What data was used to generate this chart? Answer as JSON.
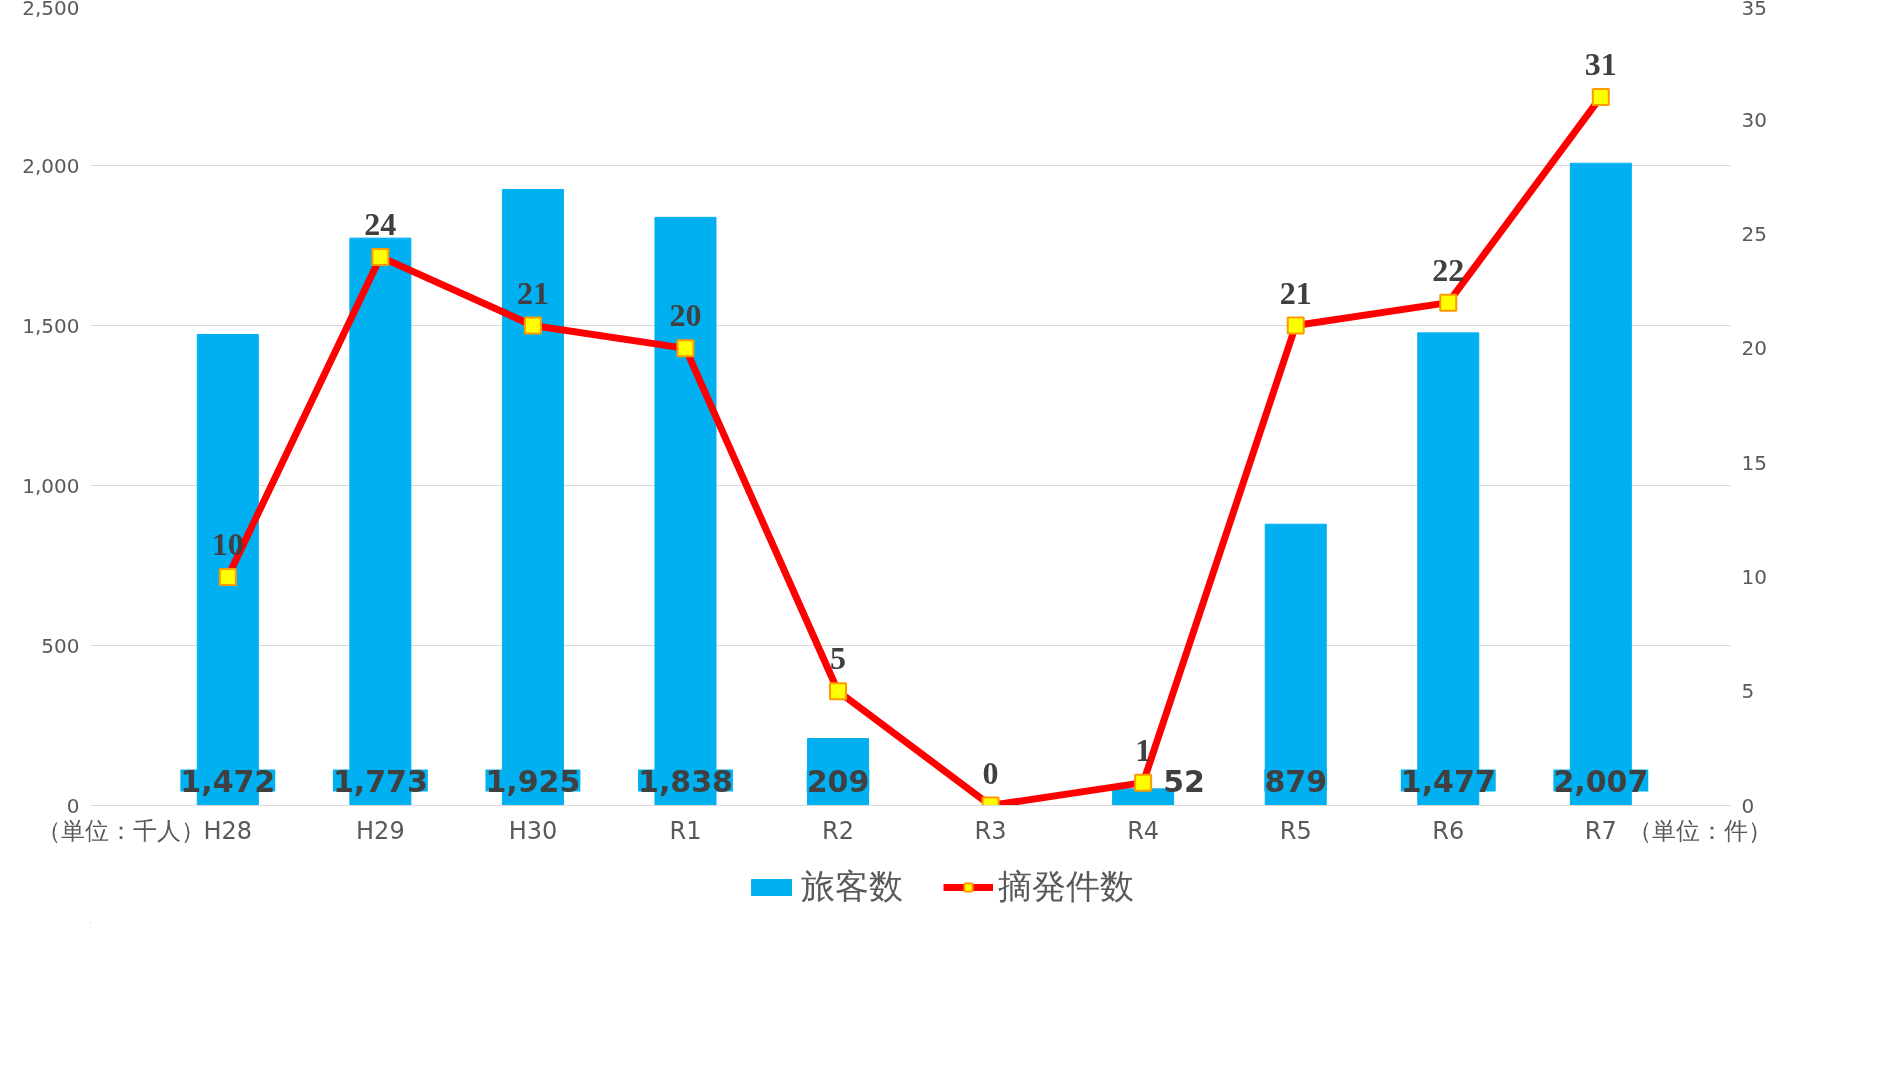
{
  "chart_data": {
    "type": "bar",
    "categories": [
      "H28",
      "H29",
      "H30",
      "R1",
      "R2",
      "R3",
      "R4",
      "R5",
      "R6",
      "R7"
    ],
    "series": [
      {
        "name": "旅客数",
        "type": "bar",
        "color": "#00b0f0",
        "values": [
          1472,
          1773,
          1925,
          1838,
          209,
          0,
          52,
          879,
          1477,
          2007
        ],
        "value_labels": [
          "1,472",
          "1,773",
          "1,925",
          "1,838",
          "209",
          null,
          "52",
          "879",
          "1,477",
          "2,007"
        ]
      },
      {
        "name": "摘発件数",
        "type": "line",
        "axis": "y2",
        "color": "#ff0000",
        "values": [
          10,
          24,
          21,
          20,
          5,
          0,
          1,
          21,
          22,
          31
        ],
        "data_labels": true
      }
    ],
    "ylim": [
      0,
      2500
    ],
    "yticks": [
      {
        "value": 0,
        "label": "0"
      },
      {
        "value": 500,
        "label": "500"
      },
      {
        "value": 1000,
        "label": "1,000"
      },
      {
        "value": 1500,
        "label": "1,500"
      },
      {
        "value": 2000,
        "label": "2,000"
      },
      {
        "value": 2500,
        "label": "2,500"
      }
    ],
    "y2lim": [
      0,
      35
    ],
    "y2ticks": [
      0,
      5,
      10,
      15,
      20,
      25,
      30,
      35
    ],
    "grid": "y",
    "legend": "bottom",
    "marker": "square",
    "line_style": "solid",
    "annotations": [
      "（単位：千人）",
      "（単位：件）"
    ]
  }
}
